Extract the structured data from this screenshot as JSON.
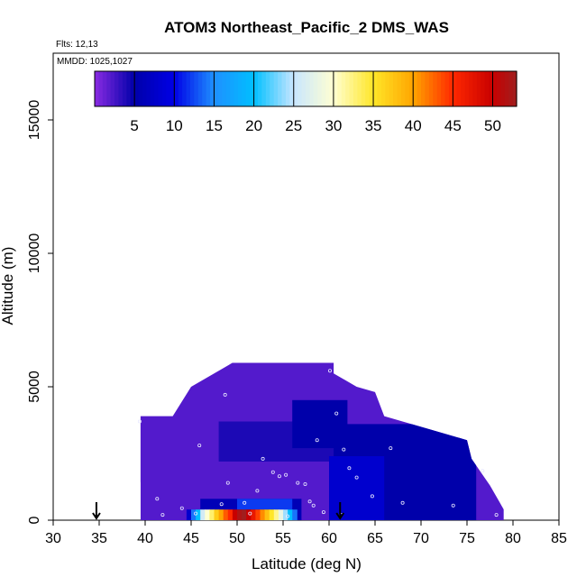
{
  "header": {
    "title": "ATOM3 Northeast_Pacific_2 DMS_WAS",
    "flights": "Flts: 12,13",
    "dates": "MMDD: 1025,1027"
  },
  "chart_data": {
    "type": "heatmap",
    "title": "ATOM3 Northeast_Pacific_2 DMS_WAS",
    "xlabel": "Latitude (deg N)",
    "ylabel": "Altitude (m)",
    "xlim": [
      30,
      85
    ],
    "ylim": [
      0,
      17500
    ],
    "x_ticks": [
      "30",
      "35",
      "40",
      "45",
      "50",
      "55",
      "60",
      "65",
      "70",
      "75",
      "80",
      "85"
    ],
    "y_ticks": [
      "0",
      "5000",
      "10000",
      "15000"
    ],
    "colorbar": {
      "range": [
        0,
        53
      ],
      "ticks": [
        "5",
        "10",
        "15",
        "20",
        "25",
        "30",
        "35",
        "40",
        "45",
        "50"
      ],
      "placement": "top-inside"
    },
    "profile_markers_lat": [
      34.7,
      61.2
    ],
    "curtain_envelope": [
      [
        39.5,
        0
      ],
      [
        39.5,
        1400
      ],
      [
        39.0,
        2100
      ],
      [
        38.0,
        2900
      ],
      [
        37.5,
        3300
      ],
      [
        38.5,
        3900
      ],
      [
        43.0,
        3900
      ],
      [
        45.0,
        5000
      ],
      [
        47.5,
        5500
      ],
      [
        49.5,
        5900
      ],
      [
        60.5,
        5900
      ],
      [
        60.5,
        5500
      ],
      [
        63.0,
        5000
      ],
      [
        65.0,
        4800
      ],
      [
        66.0,
        3900
      ],
      [
        71.0,
        3400
      ],
      [
        75.0,
        3000
      ],
      [
        75.5,
        2300
      ],
      [
        76.5,
        1800
      ],
      [
        77.5,
        1300
      ],
      [
        78.5,
        700
      ],
      [
        79.0,
        400
      ],
      [
        79.0,
        0
      ]
    ],
    "cells": [
      {
        "lat": [
          39.5,
          79.0
        ],
        "alt": [
          0,
          5900
        ],
        "value": 2
      },
      {
        "lat": [
          60.0,
          76.0
        ],
        "alt": [
          0,
          3600
        ],
        "value": 5
      },
      {
        "lat": [
          48.0,
          60.5
        ],
        "alt": [
          2200,
          3700
        ],
        "value": 4
      },
      {
        "lat": [
          60.0,
          66.0
        ],
        "alt": [
          0,
          2400
        ],
        "value": 8
      },
      {
        "lat": [
          56.0,
          62.0
        ],
        "alt": [
          2700,
          4500
        ],
        "value": 5
      },
      {
        "lat": [
          46.0,
          57.0
        ],
        "alt": [
          0,
          800
        ],
        "value": 6
      },
      {
        "lat": [
          50.0,
          56.0
        ],
        "alt": [
          400,
          800
        ],
        "value": 12
      }
    ],
    "surface_strip": {
      "alt": [
        0,
        400
      ],
      "lats": [
        44.5,
        45.0,
        45.5,
        46.0,
        46.5,
        47.0,
        47.5,
        48.0,
        48.5,
        49.0,
        49.5,
        50.0,
        50.5,
        51.0,
        51.5,
        52.0,
        52.5,
        53.0,
        53.5,
        54.0,
        54.5,
        55.0,
        55.5,
        56.0
      ],
      "values": [
        8,
        14,
        20,
        26,
        30,
        33,
        37,
        40,
        43,
        45,
        50,
        52,
        53,
        50,
        47,
        44,
        41,
        38,
        35,
        32,
        28,
        24,
        20,
        14
      ]
    },
    "sample_points": [
      [
        39.4,
        3700
      ],
      [
        41.3,
        800
      ],
      [
        44.0,
        450
      ],
      [
        45.5,
        250
      ],
      [
        48.3,
        600
      ],
      [
        50.8,
        650
      ],
      [
        51.4,
        250
      ],
      [
        52.2,
        1100
      ],
      [
        53.9,
        1800
      ],
      [
        54.6,
        1650
      ],
      [
        55.3,
        1700
      ],
      [
        56.6,
        1400
      ],
      [
        57.4,
        1350
      ],
      [
        57.9,
        700
      ],
      [
        58.3,
        550
      ],
      [
        59.4,
        300
      ],
      [
        60.8,
        4000
      ],
      [
        61.6,
        2650
      ],
      [
        62.2,
        1950
      ],
      [
        63.0,
        1600
      ],
      [
        64.7,
        900
      ],
      [
        68.0,
        650
      ],
      [
        73.5,
        550
      ],
      [
        76.7,
        1850
      ],
      [
        78.2,
        200
      ],
      [
        45.9,
        2800
      ],
      [
        49.0,
        1400
      ],
      [
        52.8,
        2300
      ],
      [
        58.7,
        3000
      ],
      [
        60.1,
        5600
      ],
      [
        41.9,
        200
      ],
      [
        55.5,
        150
      ],
      [
        61.3,
        200
      ],
      [
        66.7,
        2700
      ],
      [
        48.7,
        4700
      ]
    ]
  }
}
